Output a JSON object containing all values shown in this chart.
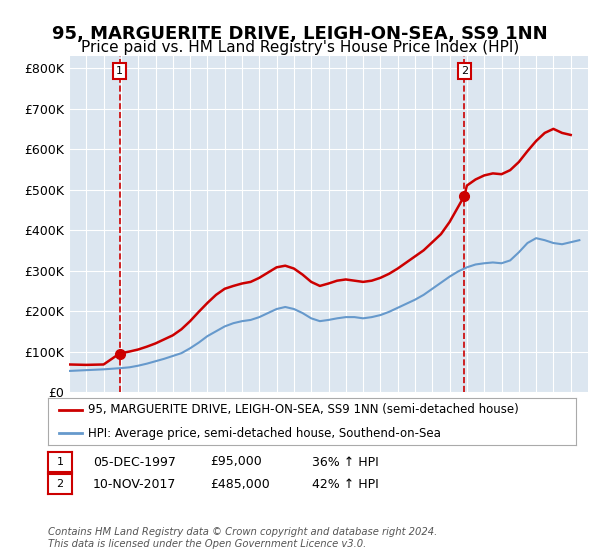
{
  "title": "95, MARGUERITE DRIVE, LEIGH-ON-SEA, SS9 1NN",
  "subtitle": "Price paid vs. HM Land Registry's House Price Index (HPI)",
  "title_fontsize": 13,
  "subtitle_fontsize": 11,
  "bg_color": "#dce6f0",
  "plot_bg_color": "#dce6f0",
  "ylabel_ticks": [
    "£0",
    "£100K",
    "£200K",
    "£300K",
    "£400K",
    "£500K",
    "£600K",
    "£700K",
    "£800K"
  ],
  "ytick_values": [
    0,
    100000,
    200000,
    300000,
    400000,
    500000,
    600000,
    700000,
    800000
  ],
  "ylim": [
    0,
    830000
  ],
  "xlim_start": 1995.0,
  "xlim_end": 2025.0,
  "red_line_label": "95, MARGUERITE DRIVE, LEIGH-ON-SEA, SS9 1NN (semi-detached house)",
  "blue_line_label": "HPI: Average price, semi-detached house, Southend-on-Sea",
  "red_color": "#cc0000",
  "blue_color": "#6699cc",
  "point1_date": "05-DEC-1997",
  "point1_price": 95000,
  "point1_label": "1",
  "point1_year": 1997.92,
  "point2_date": "10-NOV-2017",
  "point2_price": 485000,
  "point2_label": "2",
  "point2_year": 2017.86,
  "annotation1": "05-DEC-1997        £95,000        36% ↑ HPI",
  "annotation2": "10-NOV-2017        £485,000        42% ↑ HPI",
  "footer": "Contains HM Land Registry data © Crown copyright and database right 2024.\nThis data is licensed under the Open Government Licence v3.0.",
  "hpi_years": [
    1995,
    1995.5,
    1996,
    1996.5,
    1997,
    1997.5,
    1998,
    1998.5,
    1999,
    1999.5,
    2000,
    2000.5,
    2001,
    2001.5,
    2002,
    2002.5,
    2003,
    2003.5,
    2004,
    2004.5,
    2005,
    2005.5,
    2006,
    2006.5,
    2007,
    2007.5,
    2008,
    2008.5,
    2009,
    2009.5,
    2010,
    2010.5,
    2011,
    2011.5,
    2012,
    2012.5,
    2013,
    2013.5,
    2014,
    2014.5,
    2015,
    2015.5,
    2016,
    2016.5,
    2017,
    2017.5,
    2018,
    2018.5,
    2019,
    2019.5,
    2020,
    2020.5,
    2021,
    2021.5,
    2022,
    2022.5,
    2023,
    2023.5,
    2024,
    2024.5
  ],
  "hpi_values": [
    52000,
    53000,
    54000,
    55000,
    56000,
    57500,
    59000,
    61000,
    65000,
    70000,
    76000,
    82000,
    89000,
    96000,
    108000,
    122000,
    138000,
    150000,
    162000,
    170000,
    175000,
    178000,
    185000,
    195000,
    205000,
    210000,
    205000,
    195000,
    182000,
    175000,
    178000,
    182000,
    185000,
    185000,
    182000,
    185000,
    190000,
    198000,
    208000,
    218000,
    228000,
    240000,
    255000,
    270000,
    285000,
    298000,
    308000,
    315000,
    318000,
    320000,
    318000,
    325000,
    345000,
    368000,
    380000,
    375000,
    368000,
    365000,
    370000,
    375000
  ],
  "red_years": [
    1995,
    1996,
    1997,
    1997.92,
    1998.5,
    1999,
    1999.5,
    2000,
    2000.5,
    2001,
    2001.5,
    2002,
    2002.5,
    2003,
    2003.5,
    2004,
    2004.5,
    2005,
    2005.5,
    2006,
    2006.5,
    2007,
    2007.5,
    2008,
    2008.5,
    2009,
    2009.5,
    2010,
    2010.5,
    2011,
    2011.5,
    2012,
    2012.5,
    2013,
    2013.5,
    2014,
    2014.5,
    2015,
    2015.5,
    2016,
    2016.5,
    2017,
    2017.86,
    2018,
    2018.5,
    2019,
    2019.5,
    2020,
    2020.5,
    2021,
    2021.5,
    2022,
    2022.5,
    2023,
    2023.5,
    2024
  ],
  "red_values": [
    68000,
    67000,
    68000,
    95000,
    100000,
    105000,
    112000,
    120000,
    130000,
    140000,
    155000,
    175000,
    198000,
    220000,
    240000,
    255000,
    262000,
    268000,
    272000,
    282000,
    295000,
    308000,
    312000,
    305000,
    290000,
    272000,
    262000,
    268000,
    275000,
    278000,
    275000,
    272000,
    275000,
    282000,
    292000,
    305000,
    320000,
    335000,
    350000,
    370000,
    390000,
    420000,
    485000,
    510000,
    525000,
    535000,
    540000,
    538000,
    548000,
    568000,
    595000,
    620000,
    640000,
    650000,
    640000,
    635000
  ]
}
